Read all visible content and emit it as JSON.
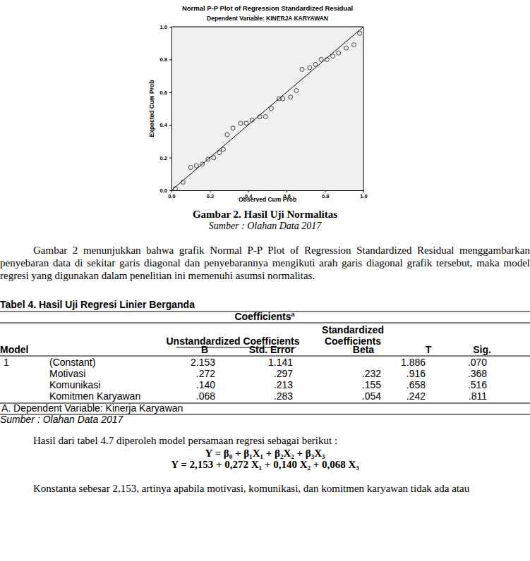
{
  "chart_data": {
    "type": "scatter",
    "title": "Normal P-P Plot of Regression Standardized Residual",
    "subtitle": "Dependent Variable: KINERJA KARYAWAN",
    "x_label": "Observed Cum Prob",
    "y_label": "Expected Cum Prob",
    "x": [
      0.02,
      0.06,
      0.1,
      0.13,
      0.16,
      0.19,
      0.22,
      0.25,
      0.27,
      0.29,
      0.32,
      0.36,
      0.39,
      0.42,
      0.46,
      0.49,
      0.52,
      0.56,
      0.58,
      0.62,
      0.65,
      0.68,
      0.72,
      0.75,
      0.78,
      0.81,
      0.84,
      0.87,
      0.91,
      0.95,
      0.98
    ],
    "values": [
      0.01,
      0.05,
      0.14,
      0.15,
      0.16,
      0.19,
      0.2,
      0.23,
      0.25,
      0.34,
      0.38,
      0.41,
      0.41,
      0.43,
      0.45,
      0.45,
      0.5,
      0.56,
      0.56,
      0.57,
      0.61,
      0.74,
      0.75,
      0.77,
      0.8,
      0.8,
      0.82,
      0.84,
      0.87,
      0.89,
      0.96
    ],
    "xlim": [
      0,
      1
    ],
    "ylim": [
      0,
      1
    ],
    "xticks": [
      {
        "value": 0,
        "label": "0.0"
      },
      {
        "value": 0.2,
        "label": "0.2"
      },
      {
        "value": 0.4,
        "label": "0.4"
      },
      {
        "value": 0.6,
        "label": "0.6"
      },
      {
        "value": 0.8,
        "label": "0.8"
      },
      {
        "value": 1,
        "label": "1.0"
      }
    ],
    "yticks": [
      {
        "value": 0,
        "label": "0.0"
      },
      {
        "value": 0.2,
        "label": "0.2"
      },
      {
        "value": 0.4,
        "label": "0.4"
      },
      {
        "value": 0.6,
        "label": "0.6"
      },
      {
        "value": 0.8,
        "label": "0.8"
      },
      {
        "value": 1,
        "label": "1.0"
      }
    ],
    "marker": "circle",
    "grid": false
  },
  "document": {
    "figure_caption": "Gambar 2. Hasil Uji Normalitas",
    "figure_source": "Sumber : Olahan Data 2017",
    "paragraph_1": "Gambar 2 menunjukkan bahwa grafik Normal P-P Plot of Regression Standardized Residual menggambarkan penyebaran data di sekitar garis diagonal dan penyebarannya mengikuti arah garis diagonal grafik tersebut, maka model regresi yang digunakan dalam penelitian ini memenuhi asumsi normalitas.",
    "table_title": "Tabel 4. Hasil Uji Regresi Linier Berganda",
    "table": {
      "title": "Coefficients",
      "title_sup": "a",
      "group_headers": [
        "Unstandardized Coefficients",
        "Standardized Coefficients"
      ],
      "headers": [
        "Model",
        "B",
        "Std. Error",
        "Beta",
        "T",
        "Sig."
      ],
      "rows": [
        [
          "1",
          "(Constant)",
          "2.153",
          "1.141",
          null,
          "1.886",
          ".070"
        ],
        [
          null,
          "Motivasi",
          ".272",
          ".297",
          ".232",
          ".916",
          ".368"
        ],
        [
          null,
          "Komunikasi",
          ".140",
          ".213",
          ".155",
          ".658",
          ".516"
        ],
        [
          null,
          "Komitmen Karyawan",
          ".068",
          ".283",
          ".054",
          ".242",
          ".811"
        ]
      ],
      "footnote": "A. Dependent Variable: Kinerja Karyawan",
      "source": "Sumber : Olahan Data 2017"
    },
    "paragraph_2": "Hasil dari tabel 4.7 diperoleh model persamaan regresi sebagai berikut :",
    "equations": [
      "Y = β₀ + β₁X₁ + β₂X₂ + β₃X₃",
      "Y = 2,153 + 0,272 X₁ + 0,140 X₂ + 0,068 X₃"
    ],
    "paragraph_3": "Konstanta sebesar 2,153, artinya apabila motivasi, komunikasi, dan komitmen karyawan tidak ada atau"
  }
}
